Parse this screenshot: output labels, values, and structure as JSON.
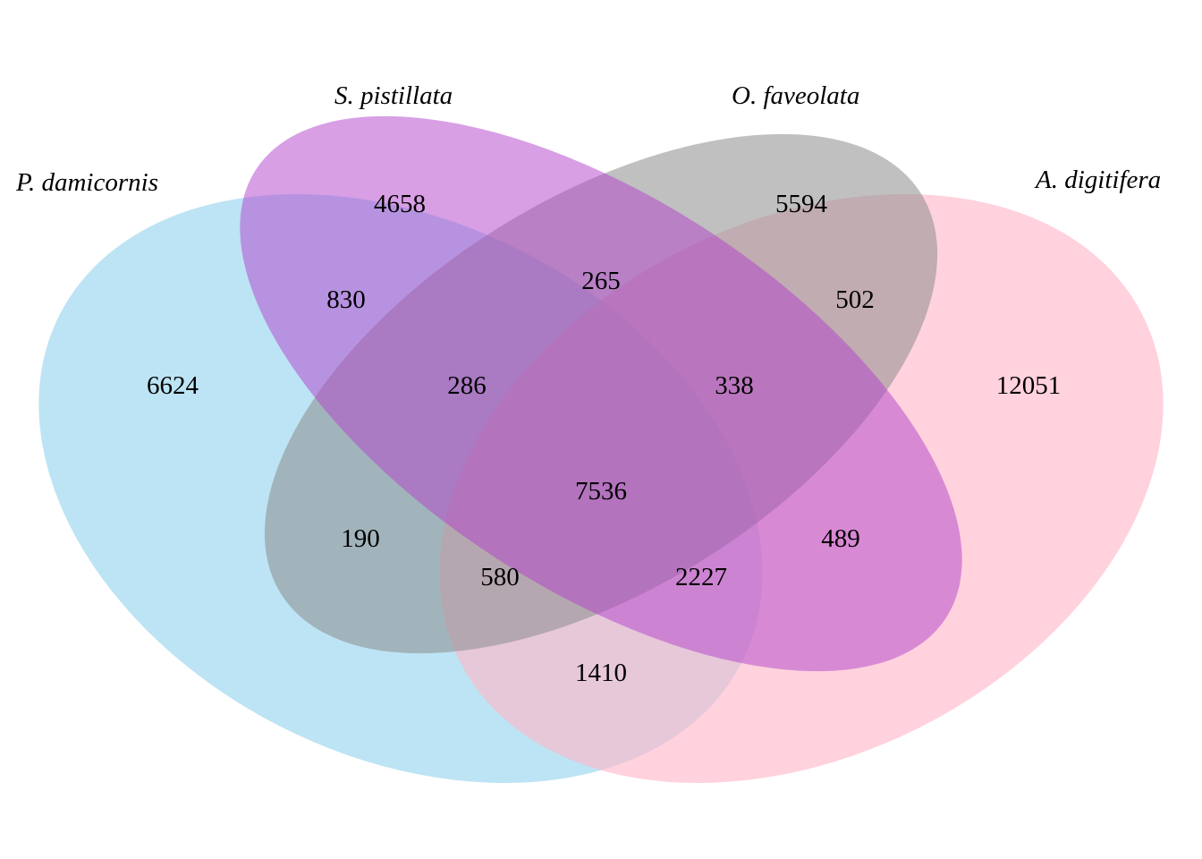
{
  "sets": [
    {
      "id": "pdam",
      "label": "P. damicornis",
      "color": "#87CEEB"
    },
    {
      "id": "spis",
      "label": "S. pistillata",
      "color": "#B23FCC"
    },
    {
      "id": "ofav",
      "label": "O. faveolata",
      "color": "#8C8C8C"
    },
    {
      "id": "adig",
      "label": "A. digitifera",
      "color": "#FFB6C8"
    }
  ],
  "regions": {
    "pdam_only": "6624",
    "spis_only": "4658",
    "ofav_only": "5594",
    "adig_only": "12051",
    "pdam_spis": "830",
    "spis_ofav": "265",
    "ofav_adig": "502",
    "pdam_spis_ofav": "286",
    "spis_ofav_adig": "338",
    "all": "7536",
    "pdam_ofav": "190",
    "spis_adig": "489",
    "pdam_ofav_adig": "580",
    "pdam_spis_adig": "2227",
    "pdam_adig": "1410"
  }
}
